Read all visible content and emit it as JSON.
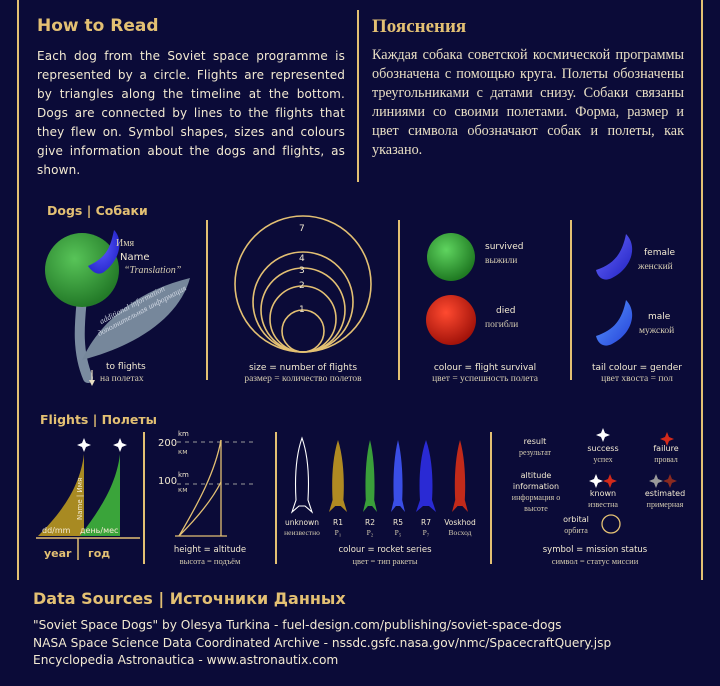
{
  "how_to_read": {
    "title_en": "How to Read",
    "title_ru": "Пояснения",
    "text_en": "Each dog from the Soviet space programme is represented by a circle. Flights are represented by triangles along the timeline at the bottom. Dogs are connected by lines to the flights that they flew on. Symbol shapes, sizes and colours give information about the dogs and flights, as shown.",
    "text_ru": "Каждая собака советской космической программы обозначена с помощью круга. Полеты обозначены треугольниками с датами снизу. Собаки связаны линиями со своими полетами. Форма, размер и цвет символа обозначают собак и полеты, как указано."
  },
  "dogs": {
    "title": "Dogs | Собаки",
    "name_labels": {
      "ru": "Имя",
      "en": "Name",
      "translation": "“Translation”"
    },
    "leaf_text_en": "additional information",
    "leaf_text_ru": "дополнительная информация",
    "to_flights_en": "to flights",
    "to_flights_ru": "на полетах",
    "size": {
      "numbers": [
        "7",
        "4",
        "3",
        "2",
        "1"
      ],
      "caption_en": "size = number of flights",
      "caption_ru": "размер = количество полетов"
    },
    "colour": {
      "survived_en": "survived",
      "survived_ru": "выжили",
      "died_en": "died",
      "died_ru": "погибли",
      "caption_en": "colour = flight survival",
      "caption_ru": "цвет = успешность полета"
    },
    "tail": {
      "female_en": "female",
      "female_ru": "женский",
      "male_en": "male",
      "male_ru": "мужской",
      "caption_en": "tail colour = gender",
      "caption_ru": "цвет хвоста = пол"
    },
    "colors": {
      "survived": "#3fae3f",
      "died": "#d42a1a",
      "female": "#4a4ae0",
      "male": "#3a6ef0",
      "dog_green": "#3f9f42"
    }
  },
  "flights": {
    "title": "Flights | Полеты",
    "timeline": {
      "date_label": "dd/mm",
      "date_label_ru": "день/мес",
      "year_en": "year",
      "year_ru": "год",
      "name_en": "Name",
      "name_ru": "Имя"
    },
    "altitude": {
      "ticks": [
        {
          "value": "200",
          "unit_en": "km",
          "unit_ru": "км"
        },
        {
          "value": "100",
          "unit_en": "km",
          "unit_ru": "км"
        }
      ],
      "caption_en": "height = altitude",
      "caption_ru": "высота = подъём"
    },
    "rockets": {
      "items": [
        {
          "en": "unknown",
          "ru": "неизвестно",
          "color": "none"
        },
        {
          "en": "R1",
          "ru": "Р₁",
          "color": "#b08a22"
        },
        {
          "en": "R2",
          "ru": "Р₂",
          "color": "#3a9f3a"
        },
        {
          "en": "R5",
          "ru": "Р₅",
          "color": "#3a4ee6"
        },
        {
          "en": "R7",
          "ru": "Р₇",
          "color": "#2a2ad4"
        },
        {
          "en": "Voskhod",
          "ru": "Восход",
          "color": "#c22a1a"
        }
      ],
      "caption_en": "colour = rocket series",
      "caption_ru": "цвет = тип ракеты"
    },
    "status": {
      "result_en": "result",
      "result_ru": "результат",
      "altitude_en": "altitude information",
      "altitude_ru": "информация о высоте",
      "orbital_en": "orbital",
      "orbital_ru": "орбита",
      "success_en": "success",
      "success_ru": "успех",
      "failure_en": "failure",
      "failure_ru": "провал",
      "known_en": "known",
      "known_ru": "известна",
      "estimated_en": "estimated",
      "estimated_ru": "примерная",
      "caption_en": "symbol = mission status",
      "caption_ru": "символ = статус миссии"
    }
  },
  "sources": {
    "title": "Data Sources | Источники Данных",
    "lines": [
      "\"Soviet Space Dogs\" by Olesya Turkina - fuel-design.com/publishing/soviet-space-dogs",
      "NASA Space Science Data Coordinated Archive - nssdc.gsfc.nasa.gov/nmc/SpacecraftQuery.jsp",
      "Encyclopedia Astronautica - www.astronautix.com"
    ]
  }
}
